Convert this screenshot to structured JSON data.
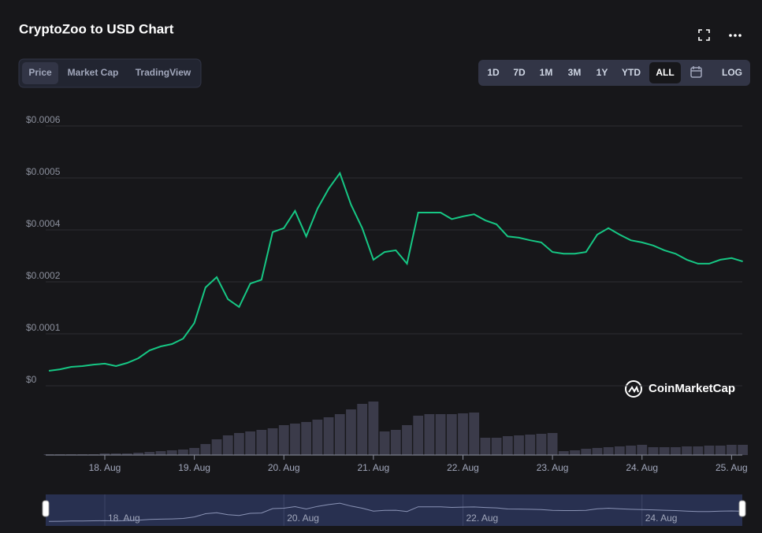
{
  "chart_data": {
    "type": "line",
    "title": "CryptoZoo to USD Chart",
    "tabs": [
      "Price",
      "Market Cap",
      "TradingView"
    ],
    "ranges": [
      "1D",
      "7D",
      "1M",
      "3M",
      "1Y",
      "YTD",
      "ALL"
    ],
    "scale_button": "LOG",
    "watermark": "CoinMarketCap",
    "color": "#16c784",
    "volume_color": "#3b3b4a",
    "xlim": [
      17.34,
      25.12
    ],
    "xticks": [
      {
        "value": 18,
        "label": "18. Aug"
      },
      {
        "value": 19,
        "label": "19. Aug"
      },
      {
        "value": 20,
        "label": "20. Aug"
      },
      {
        "value": 21,
        "label": "21. Aug"
      },
      {
        "value": 22,
        "label": "22. Aug"
      },
      {
        "value": 23,
        "label": "23. Aug"
      },
      {
        "value": 24,
        "label": "24. Aug"
      },
      {
        "value": 25,
        "label": "25. Aug"
      }
    ],
    "ylim": [
      0,
      0.00065
    ],
    "yticks": [
      {
        "value": 0,
        "label": "$0"
      },
      {
        "value": 0.00012,
        "label": "$0.0001"
      },
      {
        "value": 0.00024,
        "label": "$0.0002"
      },
      {
        "value": 0.00036,
        "label": "$0.0004"
      },
      {
        "value": 0.00048,
        "label": "$0.0005"
      },
      {
        "value": 0.0006,
        "label": "$0.0006"
      }
    ],
    "grid": true,
    "x": [
      17.375,
      17.5,
      17.625,
      17.75,
      17.875,
      18,
      18.125,
      18.25,
      18.375,
      18.5,
      18.625,
      18.75,
      18.875,
      19,
      19.125,
      19.25,
      19.375,
      19.5,
      19.625,
      19.75,
      19.875,
      20,
      20.125,
      20.25,
      20.375,
      20.5,
      20.625,
      20.75,
      20.875,
      21,
      21.125,
      21.25,
      21.375,
      21.5,
      21.625,
      21.75,
      21.875,
      22,
      22.125,
      22.25,
      22.375,
      22.5,
      22.625,
      22.75,
      22.875,
      23,
      23.125,
      23.25,
      23.375,
      23.5,
      23.625,
      23.75,
      23.875,
      24,
      24.125,
      24.25,
      24.375,
      24.5,
      24.625,
      24.75,
      24.875,
      25,
      25.125
    ],
    "values": [
      3.45e-05,
      3.8e-05,
      4.36e-05,
      4.55e-05,
      4.9e-05,
      5.1e-05,
      4.55e-05,
      5.27e-05,
      6.36e-05,
      8.18e-05,
      9.09e-05,
      9.64e-05,
      0.000109,
      0.000145,
      0.000227,
      0.000251,
      0.0002,
      0.000182,
      0.000236,
      0.000245,
      0.000355,
      0.000364,
      0.000404,
      0.000345,
      0.000409,
      0.000455,
      0.000491,
      0.000418,
      0.000364,
      0.000291,
      0.000309,
      0.000313,
      0.000282,
      0.0004,
      0.0004,
      0.0004,
      0.000385,
      0.000391,
      0.000396,
      0.000382,
      0.000373,
      0.000345,
      0.000342,
      0.000336,
      0.000331,
      0.000309,
      0.000305,
      0.000305,
      0.000309,
      0.000349,
      0.000364,
      0.000349,
      0.000336,
      0.000331,
      0.000324,
      0.000313,
      0.000305,
      0.000291,
      0.000282,
      0.000282,
      0.000291,
      0.000295,
      0.000287
    ],
    "vlim": [
      0,
      80
    ],
    "volume": [
      1,
      1,
      1,
      1,
      1,
      2,
      2,
      2,
      3,
      4,
      5,
      6,
      7,
      9,
      14,
      20,
      25,
      28,
      30,
      32,
      34,
      38,
      40,
      42,
      45,
      48,
      52,
      58,
      65,
      68,
      30,
      32,
      38,
      50,
      52,
      52,
      52,
      53,
      54,
      22,
      22,
      24,
      25,
      26,
      27,
      28,
      5,
      6,
      8,
      9,
      10,
      11,
      12,
      13,
      10,
      10,
      10,
      11,
      11,
      12,
      12,
      13,
      13
    ]
  }
}
